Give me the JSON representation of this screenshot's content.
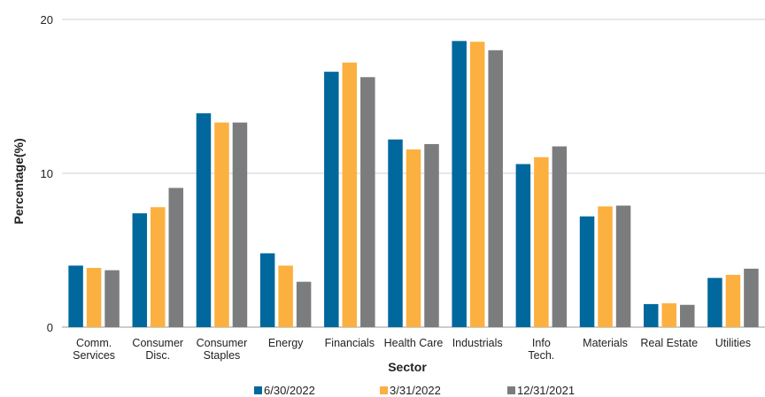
{
  "chart_data": {
    "type": "bar",
    "title": "",
    "xlabel": "Sector",
    "ylabel": "Percentage(%)",
    "ylim": [
      0,
      20
    ],
    "yticks": [
      "0",
      "10",
      "20"
    ],
    "grid": true,
    "legend_position": "bottom",
    "categories": [
      [
        "Comm.",
        "Services"
      ],
      [
        "Consumer",
        "Disc."
      ],
      [
        "Consumer",
        "Staples"
      ],
      [
        "Energy"
      ],
      [
        "Financials"
      ],
      [
        "Health Care"
      ],
      [
        "Industrials"
      ],
      [
        "Info",
        "Tech."
      ],
      [
        "Materials"
      ],
      [
        "Real Estate"
      ],
      [
        "Utilities"
      ]
    ],
    "series": [
      {
        "name": "6/30/2022",
        "color": "#00689d",
        "values": [
          4.0,
          7.4,
          13.9,
          4.8,
          16.6,
          12.2,
          18.6,
          10.6,
          7.2,
          1.5,
          3.2
        ]
      },
      {
        "name": "3/31/2022",
        "color": "#fbb040",
        "values": [
          3.85,
          7.8,
          13.3,
          4.0,
          17.2,
          11.55,
          18.55,
          11.05,
          7.85,
          1.55,
          3.4
        ]
      },
      {
        "name": "12/31/2021",
        "color": "#7b7c7e",
        "values": [
          3.7,
          9.05,
          13.3,
          2.95,
          16.25,
          11.9,
          18.0,
          11.75,
          7.9,
          1.45,
          3.8
        ]
      }
    ]
  }
}
